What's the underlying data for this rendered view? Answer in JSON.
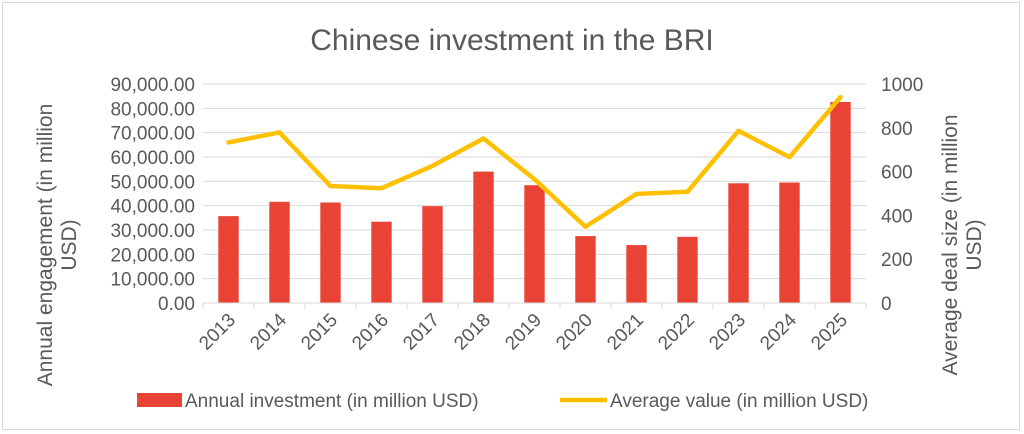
{
  "chart_data": {
    "type": "bar+line",
    "title": "Chinese investment in the BRI",
    "categories": [
      "2013",
      "2014",
      "2015",
      "2016",
      "2017",
      "2018",
      "2019",
      "2020",
      "2021",
      "2022",
      "2023",
      "2024",
      "2025"
    ],
    "ylabel": "Annual engagement (in million USD)",
    "y2label": "Average deal size (in million USD)",
    "ylim": [
      0,
      90000
    ],
    "y2lim": [
      0,
      1000
    ],
    "yticks": [
      "0.00",
      "10,000.00",
      "20,000.00",
      "30,000.00",
      "40,000.00",
      "50,000.00",
      "60,000.00",
      "70,000.00",
      "80,000.00",
      "90,000.00"
    ],
    "y2ticks": [
      "0",
      "200",
      "400",
      "600",
      "800",
      "1000"
    ],
    "grid": true,
    "legend_position": "bottom",
    "series": [
      {
        "name": "Annual investment (in million USD)",
        "type": "bar",
        "axis": "left",
        "color": "#E94335",
        "values": [
          35700,
          41600,
          41300,
          33400,
          39800,
          54000,
          48400,
          27500,
          23800,
          27200,
          49200,
          49500,
          82600
        ]
      },
      {
        "name": "Average value (in million USD)",
        "type": "line",
        "axis": "right",
        "color": "#FFC000",
        "values": [
          733,
          779,
          534,
          524,
          626,
          751,
          565,
          348,
          498,
          508,
          786,
          666,
          940
        ]
      }
    ]
  }
}
